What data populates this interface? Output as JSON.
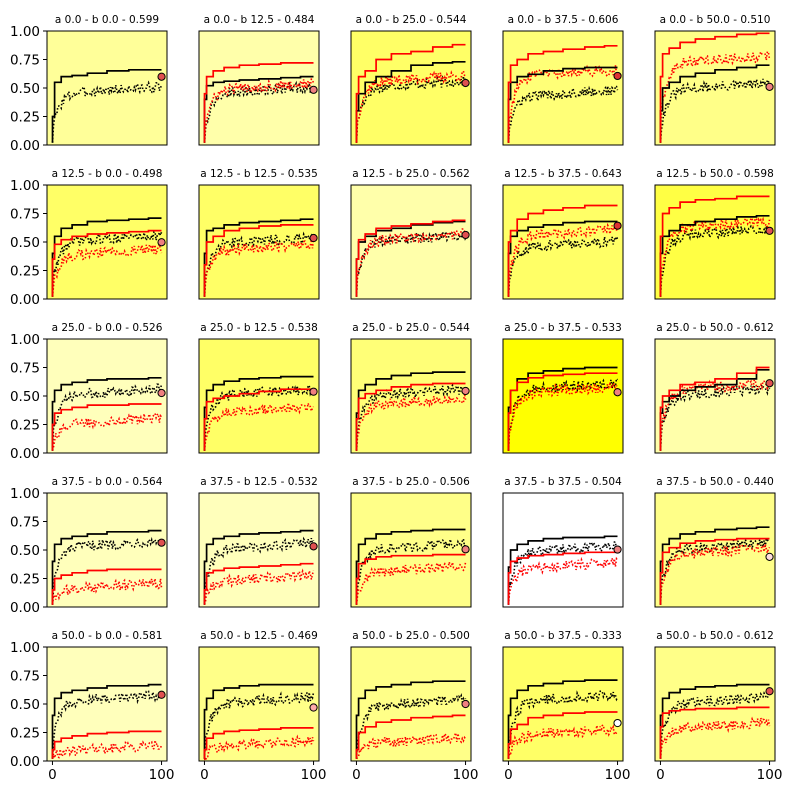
{
  "chart_data": {
    "type": "line",
    "layout": "small-multiples-5x5",
    "x_range": [
      -5,
      105
    ],
    "y_range": [
      0,
      1
    ],
    "x_ticks": [
      0,
      100
    ],
    "x_tick_labels": [
      "0",
      "100"
    ],
    "y_ticks": [
      0,
      0.25,
      0.5,
      0.75,
      1.0
    ],
    "y_tick_labels": [
      "0.00",
      "0.25",
      "0.50",
      "0.75",
      "1.00"
    ],
    "grid": false,
    "colors": {
      "black_series": "#000000",
      "red_series": "#ff0000",
      "marker_edge": "#000000",
      "plot_border": "#000000"
    },
    "series_styles": [
      {
        "color": "black",
        "style": "solid",
        "description": "running best"
      },
      {
        "color": "black",
        "style": "dotted"
      },
      {
        "color": "red",
        "style": "solid"
      },
      {
        "color": "red",
        "style": "dotted"
      }
    ],
    "panels": [
      {
        "title": "a 0.0 - b 0.0 - 0.599",
        "value": 0.599,
        "bg": "#ffff99",
        "marker": "#e05050",
        "black_best": [
          0.25,
          0.55,
          0.6,
          0.61,
          0.63,
          0.65,
          0.66,
          0.66
        ],
        "black_mean": 0.45,
        "red_best": null,
        "red_mean": null
      },
      {
        "title": "a 0.0 - b 12.5 - 0.484",
        "value": 0.484,
        "bg": "#ffffaa",
        "marker": "#f08080",
        "black_best": [
          0.4,
          0.52,
          0.55,
          0.56,
          0.57,
          0.58,
          0.59,
          0.6
        ],
        "black_mean": 0.45,
        "red_best": [
          0.45,
          0.6,
          0.65,
          0.68,
          0.7,
          0.71,
          0.72,
          0.72
        ],
        "red_mean": 0.48
      },
      {
        "title": "a 0.0 - b 25.0 - 0.544",
        "value": 0.544,
        "bg": "#ffff66",
        "marker": "#e05050",
        "black_best": [
          0.3,
          0.45,
          0.55,
          0.6,
          0.65,
          0.7,
          0.72,
          0.73
        ],
        "black_mean": 0.5,
        "red_best": [
          0.45,
          0.6,
          0.65,
          0.75,
          0.8,
          0.82,
          0.86,
          0.88
        ],
        "red_mean": 0.55
      },
      {
        "title": "a 0.0 - b 37.5 - 0.606",
        "value": 0.606,
        "bg": "#ffff77",
        "marker": "#dd3333",
        "black_best": [
          0.4,
          0.55,
          0.6,
          0.62,
          0.65,
          0.67,
          0.68,
          0.68
        ],
        "black_mean": 0.42,
        "red_best": [
          0.55,
          0.7,
          0.75,
          0.8,
          0.82,
          0.84,
          0.86,
          0.87
        ],
        "red_mean": 0.6
      },
      {
        "title": "a 0.0 - b 50.0 - 0.510",
        "value": 0.51,
        "bg": "#ffff88",
        "marker": "#f08080",
        "black_best": [
          0.3,
          0.5,
          0.55,
          0.6,
          0.63,
          0.66,
          0.68,
          0.7
        ],
        "black_mean": 0.48,
        "red_best": [
          0.6,
          0.8,
          0.85,
          0.9,
          0.93,
          0.95,
          0.97,
          0.98
        ],
        "red_mean": 0.72
      },
      {
        "title": "a 12.5 - b 0.0 - 0.498",
        "value": 0.498,
        "bg": "#ffff66",
        "marker": "#f08080",
        "black_best": [
          0.4,
          0.55,
          0.62,
          0.65,
          0.68,
          0.69,
          0.7,
          0.71
        ],
        "black_mean": 0.5,
        "red_best": [
          0.35,
          0.48,
          0.52,
          0.55,
          0.57,
          0.58,
          0.59,
          0.6
        ],
        "red_mean": 0.38
      },
      {
        "title": "a 12.5 - b 12.5 - 0.535",
        "value": 0.535,
        "bg": "#ffff66",
        "marker": "#e05050",
        "black_best": [
          0.4,
          0.6,
          0.62,
          0.65,
          0.67,
          0.68,
          0.69,
          0.7
        ],
        "black_mean": 0.48,
        "red_best": [
          0.3,
          0.5,
          0.55,
          0.6,
          0.62,
          0.64,
          0.65,
          0.65
        ],
        "red_mean": 0.42
      },
      {
        "title": "a 12.5 - b 25.0 - 0.562",
        "value": 0.562,
        "bg": "#ffffaa",
        "marker": "#e05050",
        "black_best": [
          0.35,
          0.5,
          0.55,
          0.6,
          0.62,
          0.65,
          0.67,
          0.68
        ],
        "black_mean": 0.5,
        "red_best": [
          0.35,
          0.52,
          0.57,
          0.62,
          0.64,
          0.66,
          0.68,
          0.69
        ],
        "red_mean": 0.51
      },
      {
        "title": "a 12.5 - b 37.5 - 0.643",
        "value": 0.643,
        "bg": "#ffff66",
        "marker": "#dd3333",
        "black_best": [
          0.4,
          0.55,
          0.6,
          0.63,
          0.65,
          0.67,
          0.68,
          0.68
        ],
        "black_mean": 0.45,
        "red_best": [
          0.5,
          0.6,
          0.7,
          0.75,
          0.78,
          0.8,
          0.82,
          0.82
        ],
        "red_mean": 0.55
      },
      {
        "title": "a 12.5 - b 50.0 - 0.598",
        "value": 0.598,
        "bg": "#ffff44",
        "marker": "#e05050",
        "black_best": [
          0.4,
          0.55,
          0.6,
          0.65,
          0.68,
          0.7,
          0.72,
          0.73
        ],
        "black_mean": 0.55,
        "red_best": [
          0.55,
          0.75,
          0.8,
          0.85,
          0.87,
          0.88,
          0.9,
          0.9
        ],
        "red_mean": 0.62
      },
      {
        "title": "a 25.0 - b 0.0 - 0.526",
        "value": 0.526,
        "bg": "#ffffbb",
        "marker": "#f08080",
        "black_best": [
          0.45,
          0.55,
          0.6,
          0.62,
          0.64,
          0.65,
          0.65,
          0.66
        ],
        "black_mean": 0.5,
        "red_best": [
          0.25,
          0.35,
          0.38,
          0.4,
          0.42,
          0.42,
          0.43,
          0.43
        ],
        "red_mean": 0.25
      },
      {
        "title": "a 25.0 - b 12.5 - 0.538",
        "value": 0.538,
        "bg": "#ffff66",
        "marker": "#f08080",
        "black_best": [
          0.4,
          0.55,
          0.6,
          0.63,
          0.65,
          0.66,
          0.67,
          0.67
        ],
        "black_mean": 0.5,
        "red_best": [
          0.3,
          0.45,
          0.48,
          0.5,
          0.52,
          0.54,
          0.56,
          0.56
        ],
        "red_mean": 0.35
      },
      {
        "title": "a 25.0 - b 25.0 - 0.544",
        "value": 0.544,
        "bg": "#ffff77",
        "marker": "#f08080",
        "black_best": [
          0.35,
          0.55,
          0.6,
          0.65,
          0.68,
          0.7,
          0.71,
          0.71
        ],
        "black_mean": 0.5,
        "red_best": [
          0.3,
          0.48,
          0.52,
          0.55,
          0.58,
          0.6,
          0.61,
          0.61
        ],
        "red_mean": 0.42
      },
      {
        "title": "a 25.0 - b 37.5 - 0.533",
        "value": 0.533,
        "bg": "#ffff00",
        "marker": "#f08080",
        "black_best": [
          0.4,
          0.55,
          0.65,
          0.7,
          0.72,
          0.74,
          0.75,
          0.75
        ],
        "black_mean": 0.55,
        "red_best": [
          0.35,
          0.55,
          0.62,
          0.66,
          0.68,
          0.69,
          0.7,
          0.7
        ],
        "red_mean": 0.52
      },
      {
        "title": "a 25.0 - b 50.0 - 0.612",
        "value": 0.612,
        "bg": "#ffffaa",
        "marker": "#e05050",
        "black_best": [
          0.35,
          0.45,
          0.5,
          0.55,
          0.58,
          0.6,
          0.65,
          0.73
        ],
        "black_mean": 0.5,
        "red_best": [
          0.4,
          0.5,
          0.55,
          0.6,
          0.62,
          0.65,
          0.7,
          0.75
        ],
        "red_mean": 0.55
      },
      {
        "title": "a 37.5 - b 0.0 - 0.564",
        "value": 0.564,
        "bg": "#ffffbb",
        "marker": "#e05050",
        "black_best": [
          0.4,
          0.55,
          0.6,
          0.62,
          0.64,
          0.66,
          0.66,
          0.67
        ],
        "black_mean": 0.52,
        "red_best": [
          0.15,
          0.25,
          0.28,
          0.3,
          0.32,
          0.33,
          0.33,
          0.33
        ],
        "red_mean": 0.15
      },
      {
        "title": "a 37.5 - b 12.5 - 0.532",
        "value": 0.532,
        "bg": "#ffffbb",
        "marker": "#e05050",
        "black_best": [
          0.4,
          0.55,
          0.6,
          0.62,
          0.64,
          0.65,
          0.66,
          0.67
        ],
        "black_mean": 0.5,
        "red_best": [
          0.15,
          0.3,
          0.32,
          0.34,
          0.35,
          0.36,
          0.37,
          0.38
        ],
        "red_mean": 0.22
      },
      {
        "title": "a 37.5 - b 25.0 - 0.506",
        "value": 0.506,
        "bg": "#ffff88",
        "marker": "#f08080",
        "black_best": [
          0.4,
          0.55,
          0.6,
          0.64,
          0.66,
          0.67,
          0.68,
          0.68
        ],
        "black_mean": 0.5,
        "red_best": [
          0.25,
          0.38,
          0.42,
          0.44,
          0.45,
          0.45,
          0.46,
          0.46
        ],
        "red_mean": 0.3
      },
      {
        "title": "a 37.5 - b 37.5 - 0.504",
        "value": 0.504,
        "bg": "#ffffff",
        "marker": "#f08080",
        "black_best": [
          0.35,
          0.5,
          0.55,
          0.58,
          0.6,
          0.61,
          0.61,
          0.62
        ],
        "black_mean": 0.48,
        "red_best": [
          0.3,
          0.4,
          0.43,
          0.45,
          0.46,
          0.47,
          0.48,
          0.48
        ],
        "red_mean": 0.33
      },
      {
        "title": "a 37.5 - b 50.0 - 0.440",
        "value": 0.44,
        "bg": "#ffff88",
        "marker": "#ffdddd",
        "black_best": [
          0.4,
          0.55,
          0.6,
          0.64,
          0.66,
          0.68,
          0.69,
          0.7
        ],
        "black_mean": 0.5,
        "red_best": [
          0.3,
          0.48,
          0.52,
          0.56,
          0.58,
          0.59,
          0.6,
          0.6
        ],
        "red_mean": 0.45
      },
      {
        "title": "a 50.0 - b 0.0 - 0.581",
        "value": 0.581,
        "bg": "#ffffbb",
        "marker": "#e05050",
        "black_best": [
          0.4,
          0.55,
          0.6,
          0.62,
          0.64,
          0.66,
          0.66,
          0.67
        ],
        "black_mean": 0.52,
        "red_best": [
          0.1,
          0.17,
          0.2,
          0.22,
          0.24,
          0.25,
          0.26,
          0.26
        ],
        "red_mean": 0.08
      },
      {
        "title": "a 50.0 - b 12.5 - 0.469",
        "value": 0.469,
        "bg": "#ffff88",
        "marker": "#ffaaaa",
        "black_best": [
          0.45,
          0.55,
          0.62,
          0.64,
          0.66,
          0.67,
          0.67,
          0.67
        ],
        "black_mean": 0.5,
        "red_best": [
          0.1,
          0.2,
          0.24,
          0.26,
          0.27,
          0.28,
          0.29,
          0.29
        ],
        "red_mean": 0.12
      },
      {
        "title": "a 50.0 - b 25.0 - 0.500",
        "value": 0.5,
        "bg": "#ffff88",
        "marker": "#f08080",
        "black_best": [
          0.4,
          0.55,
          0.62,
          0.65,
          0.67,
          0.69,
          0.7,
          0.7
        ],
        "black_mean": 0.48,
        "red_best": [
          0.1,
          0.25,
          0.3,
          0.34,
          0.36,
          0.38,
          0.39,
          0.4
        ],
        "red_mean": 0.15
      },
      {
        "title": "a 50.0 - b 37.5 - 0.333",
        "value": 0.333,
        "bg": "#ffff66",
        "marker": "#ffffff",
        "black_best": [
          0.4,
          0.55,
          0.62,
          0.66,
          0.68,
          0.7,
          0.71,
          0.71
        ],
        "black_mean": 0.52,
        "red_best": [
          0.15,
          0.28,
          0.32,
          0.38,
          0.4,
          0.42,
          0.43,
          0.43
        ],
        "red_mean": 0.22
      },
      {
        "title": "a 50.0 - b 50.0 - 0.612",
        "value": 0.612,
        "bg": "#ffff88",
        "marker": "#e05050",
        "black_best": [
          0.4,
          0.55,
          0.6,
          0.63,
          0.65,
          0.66,
          0.67,
          0.67
        ],
        "black_mean": 0.5,
        "red_best": [
          0.3,
          0.42,
          0.44,
          0.45,
          0.46,
          0.46,
          0.47,
          0.47
        ],
        "red_mean": 0.28
      }
    ]
  }
}
